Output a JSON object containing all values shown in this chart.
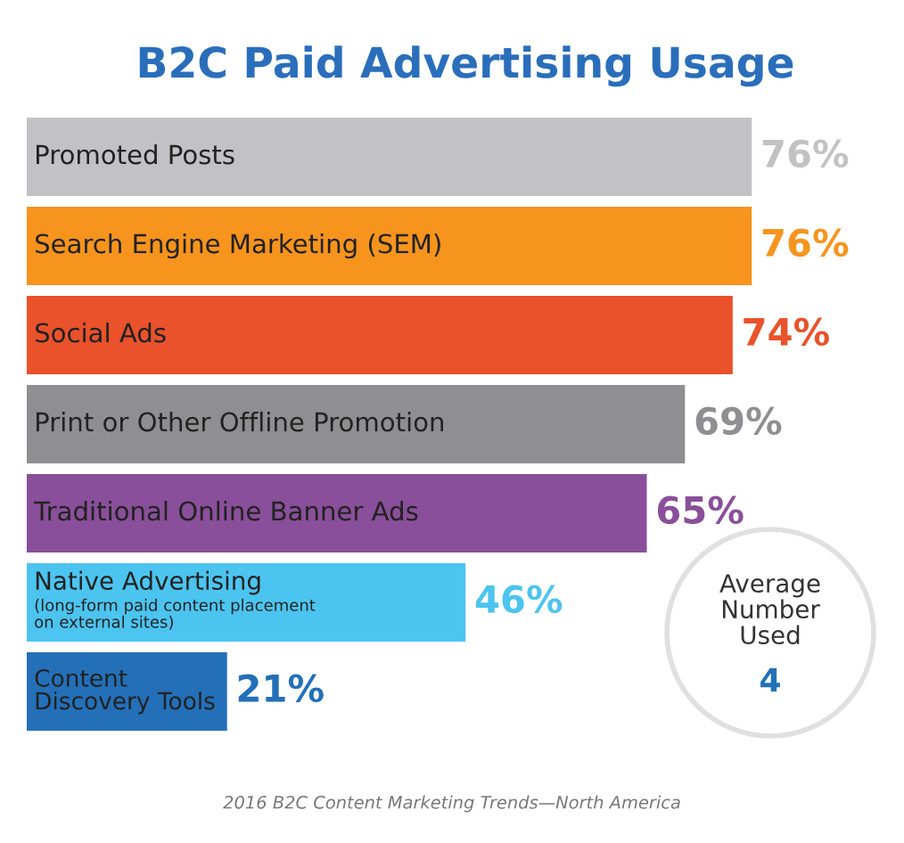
{
  "chart_data": {
    "type": "bar",
    "orientation": "horizontal",
    "title": "B2C Paid Advertising Usage",
    "categories": [
      "Promoted Posts",
      "Search Engine Marketing (SEM)",
      "Social Ads",
      "Print or Other Offline Promotion",
      "Traditional Online Banner Ads",
      "Native Advertising\n(long-form paid content placement\non external sites)",
      "Content\nDiscovery Tools"
    ],
    "values": [
      76,
      76,
      74,
      69,
      65,
      46,
      21
    ],
    "colors": [
      "#c2c2c4",
      "#f7941d",
      "#e9522b",
      "#8f8f91",
      "#8a4f9a",
      "#4cc4f0",
      "#2370b8"
    ],
    "value_labels": [
      "76%",
      "76%",
      "74%",
      "69%",
      "65%",
      "46%",
      "21%"
    ],
    "annotations": [
      "Average\nNumber\nUsed",
      "4",
      "2016 B2C Content Marketing Trends—North America"
    ]
  }
}
